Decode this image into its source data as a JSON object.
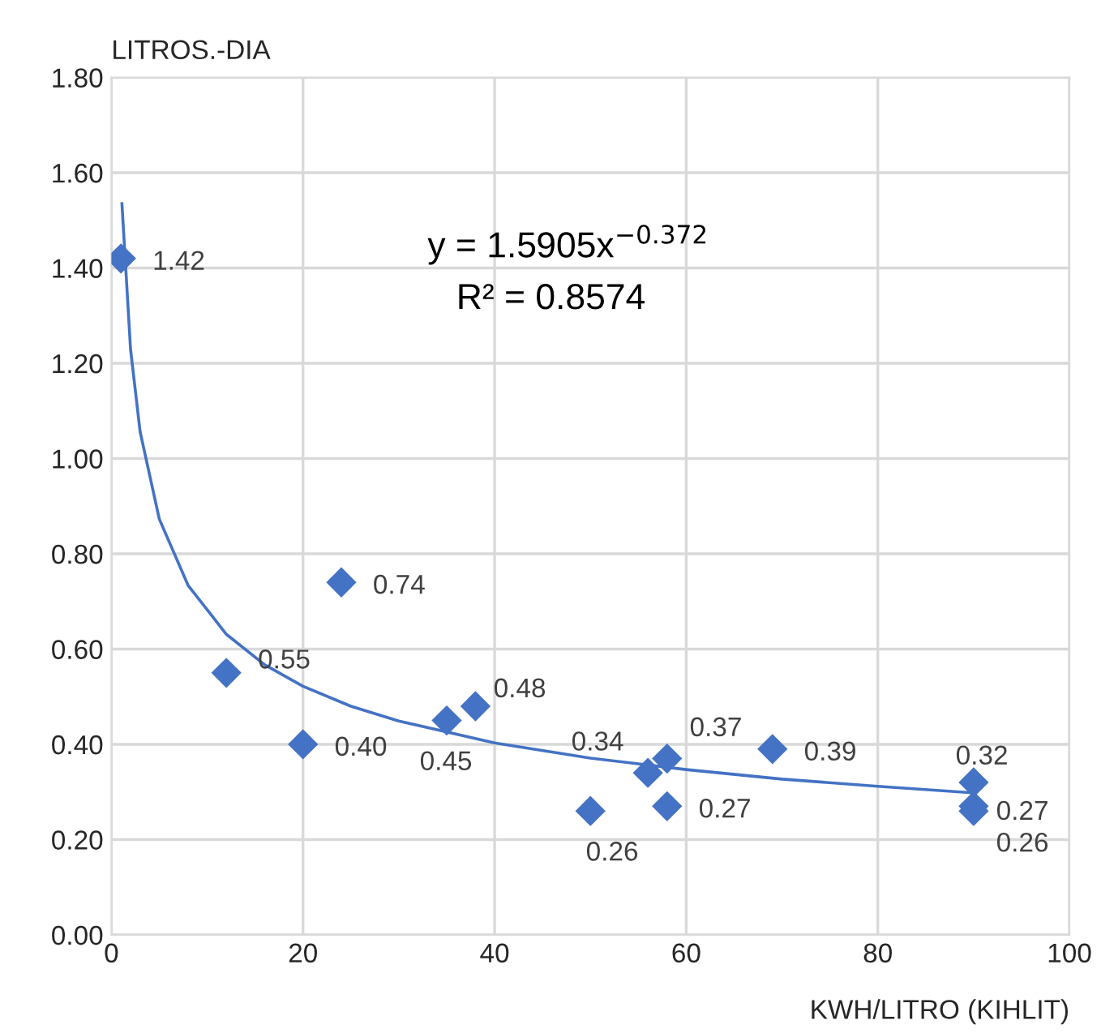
{
  "chart_data": {
    "type": "scatter",
    "xlabel": "KWH/LITRO (KIHLIT)",
    "ylabel": "LITROS.-DIA",
    "xlim": [
      0,
      100
    ],
    "xticks": [
      0,
      20,
      40,
      60,
      80,
      100
    ],
    "ylim": [
      0,
      1.8
    ],
    "yticks": [
      {
        "value": 0,
        "label": "0.00"
      },
      {
        "value": 0.2,
        "label": "0.20"
      },
      {
        "value": 0.4,
        "label": "0.40"
      },
      {
        "value": 0.6,
        "label": "0.60"
      },
      {
        "value": 0.8,
        "label": "0.80"
      },
      {
        "value": 1.0,
        "label": "1.00"
      },
      {
        "value": 1.2,
        "label": "1.20"
      },
      {
        "value": 1.4,
        "label": "1.40"
      },
      {
        "value": 1.6,
        "label": "1.60"
      },
      {
        "value": 1.8,
        "label": "1.80"
      }
    ],
    "grid": true,
    "legend": false,
    "series": [
      {
        "marker": "diamond",
        "color": "#4472c4",
        "x": [
          1,
          12,
          20,
          24,
          35,
          38,
          50,
          56,
          58,
          58,
          69,
          90,
          90,
          90
        ],
        "values": [
          1.42,
          0.55,
          0.4,
          0.74,
          0.45,
          0.48,
          0.26,
          0.34,
          0.37,
          0.27,
          0.39,
          0.32,
          0.27,
          0.26
        ],
        "value_labels": [
          "1.42",
          "0.55",
          "0.40",
          "0.74",
          "0.45",
          "0.48",
          "0.26",
          "0.34",
          "0.37",
          "0.27",
          "0.39",
          "0.32",
          "0.27",
          "0.26"
        ]
      },
      {
        "type": "line",
        "color": "#4472c4",
        "x": [
          1.1,
          2,
          3,
          5,
          8,
          12,
          16,
          20,
          25,
          30,
          40,
          50,
          60,
          70,
          80,
          90
        ],
        "values": [
          1.535,
          1.229,
          1.056,
          0.873,
          0.734,
          0.631,
          0.567,
          0.522,
          0.48,
          0.449,
          0.403,
          0.371,
          0.347,
          0.327,
          0.312,
          0.298
        ]
      }
    ],
    "annotations": [
      "y = 1.5905x$^{−0.372}$",
      "R² = 0.8574"
    ]
  }
}
